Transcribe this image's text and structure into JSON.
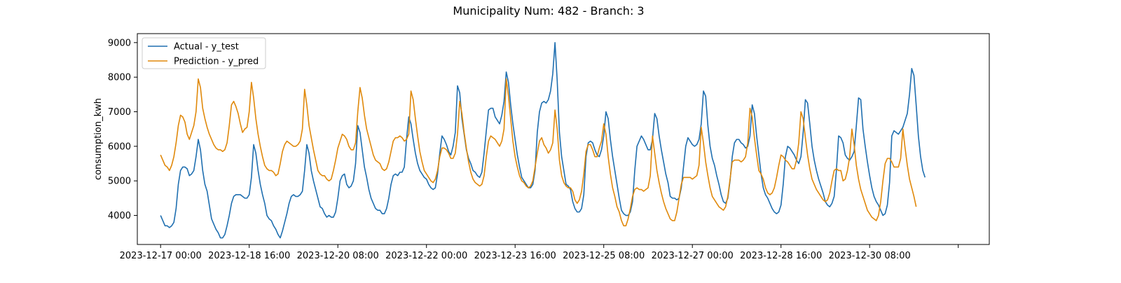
{
  "figure": {
    "suptitle": "Municipality Num: 482 - Branch: 3"
  },
  "chart_data": {
    "type": "line",
    "title": "",
    "xlabel": "",
    "ylabel": "consumption_kwh",
    "x_start": "2023-12-17 00:00",
    "x_step_hours": 1,
    "xlim": [
      "2023-12-16 13:30",
      "2024-01-01 14:00"
    ],
    "ylim": [
      3160,
      9260
    ],
    "xticks": [
      "2023-12-17 00:00",
      "2023-12-18 16:00",
      "2023-12-20 08:00",
      "2023-12-22 00:00",
      "2023-12-23 16:00",
      "2023-12-25 08:00",
      "2023-12-27 00:00",
      "2023-12-28 16:00",
      "2023-12-30 08:00",
      "2024-01-01 00:00"
    ],
    "xtick_labels": [
      "2023-12-17 00:00",
      "2023-12-18 16:00",
      "2023-12-20 08:00",
      "2023-12-22 00:00",
      "2023-12-23 16:00",
      "2023-12-25 08:00",
      "2023-12-27 00:00",
      "2023-12-28 16:00",
      "2023-12-30 08:00",
      ""
    ],
    "yticks": [
      4000,
      5000,
      6000,
      7000,
      8000,
      9000
    ],
    "ytick_labels": [
      "4000",
      "5000",
      "6000",
      "7000",
      "8000",
      "9000"
    ],
    "grid": false,
    "legend_position": "upper-left",
    "series": [
      {
        "name": "Actual - y_test",
        "color": "#1f6fb0",
        "values": [
          4000,
          3850,
          3700,
          3700,
          3650,
          3700,
          3800,
          4200,
          4900,
          5300,
          5400,
          5400,
          5350,
          5150,
          5200,
          5300,
          5700,
          6200,
          5900,
          5300,
          4900,
          4700,
          4300,
          3900,
          3750,
          3600,
          3500,
          3350,
          3350,
          3450,
          3700,
          4000,
          4350,
          4550,
          4600,
          4600,
          4600,
          4550,
          4500,
          4500,
          4600,
          5100,
          6050,
          5800,
          5300,
          4900,
          4600,
          4350,
          4000,
          3900,
          3850,
          3700,
          3600,
          3450,
          3350,
          3550,
          3800,
          4050,
          4350,
          4550,
          4600,
          4550,
          4550,
          4600,
          4700,
          5300,
          6050,
          5800,
          5300,
          5000,
          4750,
          4500,
          4250,
          4200,
          4050,
          3950,
          4000,
          3950,
          3950,
          4100,
          4500,
          5000,
          5150,
          5200,
          4900,
          4800,
          4850,
          5000,
          5500,
          6600,
          6400,
          5900,
          5400,
          5100,
          4750,
          4500,
          4350,
          4200,
          4150,
          4150,
          4050,
          4050,
          4200,
          4500,
          4900,
          5150,
          5200,
          5150,
          5250,
          5250,
          5400,
          6200,
          6850,
          6650,
          6200,
          5800,
          5500,
          5300,
          5200,
          5100,
          5050,
          4900,
          4800,
          4750,
          4800,
          5200,
          5800,
          6300,
          6200,
          6050,
          5850,
          5750,
          6000,
          6400,
          7750,
          7550,
          6800,
          6350,
          5900,
          5650,
          5500,
          5300,
          5250,
          5150,
          5100,
          5250,
          5800,
          6450,
          7050,
          7100,
          7100,
          6850,
          6750,
          6650,
          6900,
          7300,
          8150,
          7850,
          7200,
          6650,
          6200,
          5750,
          5400,
          5100,
          5000,
          4900,
          4800,
          4800,
          4900,
          5300,
          6400,
          7000,
          7250,
          7300,
          7250,
          7350,
          7600,
          8100,
          9000,
          7900,
          6400,
          5700,
          5300,
          4900,
          4850,
          4750,
          4400,
          4200,
          4100,
          4100,
          4200,
          4600,
          5700,
          6100,
          6150,
          6100,
          5900,
          5750,
          5700,
          5900,
          6300,
          7000,
          6800,
          6200,
          5700,
          5300,
          4900,
          4500,
          4150,
          4050,
          4000,
          4000,
          4100,
          4400,
          5300,
          6000,
          6150,
          6300,
          6200,
          6050,
          5900,
          5900,
          6200,
          6950,
          6800,
          6300,
          5900,
          5550,
          5200,
          4950,
          4550,
          4500,
          4500,
          4450,
          4500,
          4800,
          5400,
          6000,
          6250,
          6150,
          6050,
          6000,
          6050,
          6200,
          6650,
          7600,
          7450,
          6600,
          6000,
          5650,
          5450,
          5150,
          4900,
          4600,
          4400,
          4350,
          4500,
          5000,
          5700,
          6100,
          6200,
          6200,
          6100,
          6050,
          5950,
          6000,
          6300,
          7200,
          6950,
          6300,
          5750,
          5200,
          4800,
          4600,
          4500,
          4350,
          4200,
          4100,
          4050,
          4100,
          4300,
          4900,
          5700,
          6000,
          5950,
          5850,
          5750,
          5600,
          5500,
          5700,
          6400,
          7350,
          7250,
          6650,
          6000,
          5600,
          5300,
          5050,
          4850,
          4650,
          4400,
          4300,
          4250,
          4350,
          4550,
          5300,
          6300,
          6250,
          6100,
          5750,
          5650,
          5600,
          5700,
          5850,
          6600,
          7400,
          7350,
          6500,
          6000,
          5550,
          5150,
          4800,
          4550,
          4400,
          4300,
          4150,
          4000,
          4050,
          4300,
          4950,
          6300,
          6450,
          6400,
          6350,
          6450,
          6550,
          6750,
          6950,
          7500,
          8250,
          8050,
          7200,
          6300,
          5700,
          5300,
          5100
        ]
      },
      {
        "name": "Prediction - y_pred",
        "color": "#e0890b",
        "values": [
          5750,
          5600,
          5450,
          5400,
          5300,
          5450,
          5700,
          6100,
          6600,
          6900,
          6850,
          6700,
          6350,
          6200,
          6400,
          6600,
          7000,
          7950,
          7700,
          7100,
          6800,
          6550,
          6350,
          6200,
          6050,
          5950,
          5900,
          5900,
          5850,
          5900,
          6100,
          6600,
          7200,
          7300,
          7150,
          6950,
          6650,
          6400,
          6500,
          6550,
          7000,
          7850,
          7400,
          6800,
          6350,
          6000,
          5700,
          5450,
          5350,
          5300,
          5300,
          5250,
          5150,
          5200,
          5500,
          5850,
          6050,
          6150,
          6100,
          6050,
          6000,
          6000,
          6050,
          6150,
          6500,
          7650,
          7200,
          6600,
          6250,
          5900,
          5600,
          5300,
          5200,
          5150,
          5150,
          5050,
          5000,
          5050,
          5300,
          5600,
          5950,
          6150,
          6350,
          6300,
          6200,
          6000,
          5900,
          5900,
          6100,
          7000,
          7700,
          7400,
          6900,
          6500,
          6250,
          6000,
          5750,
          5600,
          5550,
          5500,
          5350,
          5300,
          5350,
          5550,
          5850,
          6150,
          6250,
          6250,
          6300,
          6250,
          6150,
          6200,
          6350,
          7600,
          7350,
          6800,
          6300,
          5850,
          5550,
          5300,
          5200,
          5100,
          5000,
          4950,
          5050,
          5300,
          5700,
          5950,
          5950,
          5900,
          5800,
          5650,
          5650,
          5800,
          6350,
          7300,
          6950,
          6400,
          5950,
          5550,
          5250,
          5050,
          4950,
          4900,
          4850,
          4900,
          5150,
          5700,
          6150,
          6300,
          6250,
          6200,
          6100,
          6000,
          6150,
          6500,
          7950,
          7450,
          6800,
          6150,
          5700,
          5400,
          5150,
          5000,
          4950,
          4850,
          4800,
          4850,
          5000,
          5400,
          5800,
          6150,
          6250,
          6050,
          5950,
          5800,
          5900,
          6100,
          7050,
          6500,
          5600,
          5150,
          4950,
          4850,
          4800,
          4800,
          4700,
          4450,
          4350,
          4450,
          4700,
          5200,
          5850,
          6050,
          6050,
          5900,
          5700,
          5700,
          5950,
          6150,
          6650,
          6350,
          5700,
          5200,
          4800,
          4550,
          4250,
          4100,
          3850,
          3700,
          3700,
          3900,
          4200,
          4550,
          4750,
          4800,
          4750,
          4750,
          4700,
          4750,
          4800,
          5150,
          6300,
          5800,
          5300,
          4950,
          4650,
          4400,
          4200,
          4050,
          3900,
          3850,
          3850,
          4100,
          4500,
          4900,
          5100,
          5100,
          5100,
          5100,
          5050,
          5100,
          5150,
          5450,
          6550,
          6100,
          5550,
          5150,
          4800,
          4550,
          4450,
          4350,
          4250,
          4200,
          4150,
          4250,
          4550,
          5050,
          5550,
          5600,
          5600,
          5600,
          5550,
          5600,
          5700,
          6100,
          7100,
          6850,
          6250,
          5750,
          5300,
          5200,
          5050,
          4800,
          4650,
          4600,
          4650,
          4800,
          5100,
          5450,
          5750,
          5700,
          5600,
          5550,
          5450,
          5350,
          5350,
          5600,
          6100,
          7000,
          6800,
          6250,
          5750,
          5350,
          5050,
          4900,
          4750,
          4650,
          4550,
          4450,
          4400,
          4450,
          4650,
          5000,
          5300,
          5350,
          5300,
          5300,
          5000,
          5050,
          5300,
          5700,
          6500,
          6050,
          5450,
          5050,
          4750,
          4550,
          4350,
          4150,
          4050,
          3950,
          3900,
          3850,
          4000,
          4400,
          5000,
          5500,
          5650,
          5650,
          5550,
          5400,
          5400,
          5400,
          5650,
          6500,
          5950,
          5450,
          5050,
          4800,
          4550,
          4250
        ]
      }
    ]
  }
}
